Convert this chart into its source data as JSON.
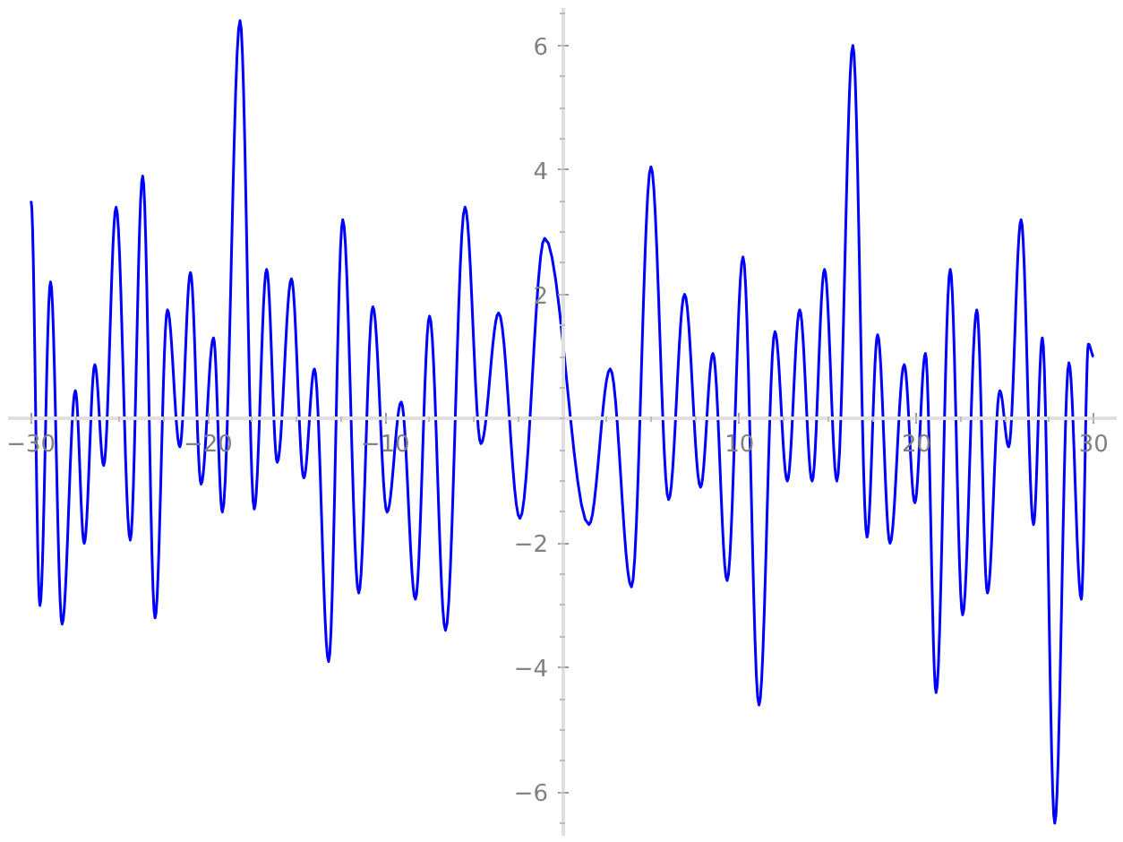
{
  "chart_data": {
    "type": "line",
    "color": "#0000ff",
    "line_style": "solid",
    "x": [
      -30,
      -29.5,
      -28.9,
      -28.25,
      -27.5,
      -27.0,
      -26.4,
      -25.9,
      -25.2,
      -24.4,
      -23.7,
      -23.0,
      -22.3,
      -21.6,
      -21.0,
      -20.4,
      -19.7,
      -19.2,
      -18.2,
      -17.4,
      -16.7,
      -16.1,
      -15.3,
      -14.6,
      -14.0,
      -13.2,
      -12.4,
      -11.5,
      -10.7,
      -9.9,
      -9.1,
      -8.3,
      -7.5,
      -6.6,
      -5.5,
      -4.6,
      -3.6,
      -2.4,
      -1.0,
      1.5,
      2.7,
      3.9,
      5.0,
      6.0,
      6.9,
      7.8,
      8.5,
      9.3,
      10.2,
      11.1,
      12.0,
      12.7,
      13.4,
      14.1,
      14.8,
      15.5,
      16.4,
      17.2,
      17.8,
      18.5,
      19.3,
      19.9,
      20.5,
      21.1,
      21.9,
      22.6,
      23.4,
      24.0,
      24.7,
      25.2,
      25.9,
      26.6,
      27.1,
      27.8,
      28.6,
      29.3,
      29.7,
      30
    ],
    "values": [
      3.5,
      -3.0,
      2.2,
      -3.3,
      0.45,
      -2.0,
      0.87,
      -0.75,
      3.4,
      -1.95,
      3.9,
      -3.2,
      1.75,
      -0.45,
      2.35,
      -1.05,
      1.3,
      -1.5,
      6.4,
      -1.45,
      2.4,
      -0.7,
      2.25,
      -0.95,
      0.8,
      -3.9,
      3.2,
      -2.8,
      1.8,
      -1.5,
      0.27,
      -2.9,
      1.65,
      -3.4,
      3.4,
      -0.4,
      1.7,
      -1.6,
      2.9,
      -1.7,
      0.8,
      -2.7,
      4.05,
      -1.3,
      2.0,
      -1.1,
      1.05,
      -2.6,
      2.6,
      -4.6,
      1.4,
      -1.0,
      1.75,
      -1.0,
      2.4,
      -1.0,
      6.0,
      -1.9,
      1.35,
      -2.0,
      0.87,
      -1.35,
      1.05,
      -4.4,
      2.4,
      -3.15,
      1.75,
      -2.8,
      0.45,
      -0.45,
      3.2,
      -1.7,
      1.3,
      -6.5,
      0.9,
      -2.9,
      1.2,
      1.0
    ],
    "xlim": [
      -31.3,
      31.3
    ],
    "ylim": [
      -6.7,
      6.6
    ],
    "xticks": [
      -30,
      -20,
      -10,
      10,
      20,
      30
    ],
    "yticks": [
      -6,
      -4,
      -2,
      2,
      4,
      6
    ]
  }
}
